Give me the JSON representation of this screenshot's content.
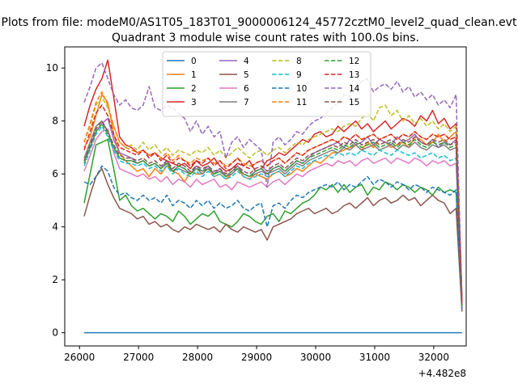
{
  "figure": {
    "suptitle": "Plots from file: modeM0/AS1T05_183T01_9000006124_45772cztM0_level2_quad_clean.evt"
  },
  "chart_data": {
    "type": "line",
    "title": "Quadrant 3 module wise count rates with 100.0s bins.",
    "xlabel": "",
    "ylabel": "",
    "x_offset_label": "+4.482e8",
    "xlim": [
      25750,
      32550
    ],
    "ylim": [
      -0.5,
      10.8
    ],
    "x_ticks": [
      26000,
      27000,
      28000,
      29000,
      30000,
      31000,
      32000
    ],
    "x_tick_labels": [
      "26000",
      "27000",
      "28000",
      "29000",
      "30000",
      "31000",
      "32000"
    ],
    "y_ticks": [
      0,
      2,
      4,
      6,
      8,
      10
    ],
    "y_tick_labels": [
      "0",
      "2",
      "4",
      "6",
      "8",
      "10"
    ],
    "x_start": 26079,
    "x_step": 100,
    "legend": {
      "placement": "upper-center",
      "columns": 4
    },
    "grid": false,
    "series": [
      {
        "name": "0",
        "color": "#1f77b4",
        "dash": "solid",
        "values": [
          0,
          0,
          0,
          0,
          0,
          0,
          0,
          0,
          0,
          0,
          0,
          0,
          0,
          0,
          0,
          0,
          0,
          0,
          0,
          0,
          0,
          0,
          0,
          0,
          0,
          0,
          0,
          0,
          0,
          0,
          0,
          0,
          0,
          0,
          0,
          0,
          0,
          0,
          0,
          0,
          0,
          0,
          0,
          0,
          0,
          0,
          0,
          0,
          0,
          0,
          0,
          0,
          0,
          0,
          0,
          0,
          0,
          0,
          0,
          0,
          0,
          0,
          0,
          0,
          0
        ]
      },
      {
        "name": "1",
        "color": "#ff7f0e",
        "dash": "solid",
        "values": [
          7.0,
          7.4,
          8.2,
          9.0,
          8.7,
          7.5,
          6.8,
          6.5,
          6.3,
          6.1,
          6.2,
          5.9,
          6.2,
          6.0,
          6.3,
          6.1,
          6.0,
          5.7,
          6.1,
          6.0,
          6.0,
          6.2,
          5.9,
          6.0,
          5.8,
          6.0,
          6.2,
          5.9,
          5.8,
          6.0,
          5.9,
          5.8,
          6.0,
          6.1,
          5.9,
          6.0,
          6.2,
          6.1,
          6.3,
          6.5,
          6.4,
          6.6,
          6.8,
          6.8,
          6.9,
          7.0,
          7.1,
          6.9,
          7.2,
          7.0,
          7.3,
          7.2,
          7.0,
          7.1,
          7.2,
          7.0,
          7.4,
          7.3,
          7.1,
          7.2,
          7.5,
          7.2,
          7.4,
          7.6,
          0.9
        ]
      },
      {
        "name": "2",
        "color": "#2ca02c",
        "dash": "solid",
        "values": [
          4.9,
          6.0,
          7.1,
          7.2,
          7.3,
          6.2,
          5.0,
          5.2,
          4.8,
          4.6,
          4.7,
          4.5,
          4.3,
          4.5,
          4.4,
          4.2,
          4.6,
          4.4,
          4.1,
          4.3,
          4.5,
          4.4,
          4.6,
          4.2,
          4.1,
          4.0,
          4.2,
          4.5,
          4.4,
          4.2,
          4.1,
          4.4,
          4.5,
          4.2,
          4.6,
          4.5,
          4.7,
          4.9,
          5.0,
          5.2,
          5.5,
          5.4,
          5.6,
          5.3,
          5.6,
          5.3,
          5.5,
          5.6,
          5.2,
          5.5,
          5.4,
          5.7,
          5.6,
          5.4,
          5.6,
          5.5,
          5.3,
          5.5,
          5.4,
          5.2,
          5.5,
          5.3,
          5.4,
          5.3,
          1.0
        ]
      },
      {
        "name": "3",
        "color": "#d62728",
        "dash": "solid",
        "values": [
          7.8,
          8.6,
          9.2,
          9.6,
          10.3,
          8.9,
          7.4,
          7.1,
          7.0,
          6.8,
          6.9,
          6.7,
          6.8,
          6.6,
          6.5,
          6.4,
          6.3,
          6.4,
          6.2,
          6.5,
          6.3,
          6.4,
          6.6,
          6.3,
          6.1,
          6.2,
          6.4,
          6.3,
          6.5,
          6.1,
          6.2,
          6.5,
          6.6,
          6.8,
          6.7,
          6.9,
          7.1,
          7.3,
          7.2,
          7.5,
          7.6,
          7.4,
          7.5,
          7.8,
          7.6,
          7.8,
          8.0,
          7.7,
          7.9,
          7.6,
          7.8,
          8.0,
          7.7,
          7.9,
          8.1,
          8.0,
          7.8,
          8.2,
          8.0,
          8.4,
          7.9,
          8.1,
          7.7,
          7.9,
          1.3
        ]
      },
      {
        "name": "4",
        "color": "#9467bd",
        "dash": "solid",
        "values": [
          6.5,
          7.0,
          7.6,
          7.9,
          8.1,
          7.3,
          6.8,
          6.7,
          6.6,
          6.4,
          6.5,
          6.3,
          6.4,
          6.2,
          6.5,
          6.1,
          6.3,
          6.2,
          6.0,
          6.3,
          6.1,
          6.3,
          6.0,
          6.2,
          5.9,
          6.1,
          6.3,
          6.0,
          5.9,
          6.1,
          6.2,
          6.0,
          6.2,
          6.3,
          6.1,
          6.3,
          6.5,
          6.4,
          6.6,
          6.8,
          6.9,
          7.0,
          7.1,
          7.2,
          7.0,
          7.3,
          7.1,
          7.2,
          7.4,
          7.1,
          7.3,
          7.2,
          7.1,
          7.4,
          7.2,
          7.3,
          7.5,
          7.2,
          7.1,
          7.3,
          7.0,
          7.2,
          7.1,
          7.3,
          1.0
        ]
      },
      {
        "name": "5",
        "color": "#8c564b",
        "dash": "solid",
        "values": [
          4.4,
          5.2,
          5.9,
          6.2,
          5.6,
          5.1,
          4.7,
          4.6,
          4.5,
          4.3,
          4.4,
          4.1,
          4.2,
          4.0,
          4.1,
          3.9,
          3.8,
          4.0,
          3.9,
          4.1,
          4.0,
          3.9,
          4.0,
          3.8,
          4.1,
          3.9,
          3.8,
          4.0,
          3.9,
          3.8,
          3.9,
          3.5,
          4.0,
          4.1,
          4.2,
          4.3,
          4.5,
          4.6,
          4.7,
          4.5,
          4.6,
          4.7,
          4.5,
          4.6,
          4.8,
          4.9,
          4.7,
          4.9,
          5.1,
          4.8,
          5.0,
          5.1,
          4.9,
          5.0,
          5.2,
          5.0,
          5.1,
          4.8,
          5.0,
          5.2,
          5.0,
          4.9,
          4.5,
          4.7,
          0.8
        ]
      },
      {
        "name": "6",
        "color": "#e377c2",
        "dash": "solid",
        "values": [
          6.1,
          6.7,
          7.3,
          7.6,
          7.7,
          6.8,
          6.2,
          6.1,
          6.0,
          5.9,
          6.0,
          5.8,
          5.9,
          5.7,
          5.9,
          5.6,
          5.8,
          5.7,
          5.5,
          5.8,
          5.6,
          5.7,
          5.8,
          5.5,
          5.6,
          5.4,
          5.7,
          5.6,
          5.5,
          5.6,
          5.7,
          5.5,
          5.7,
          5.8,
          5.6,
          5.8,
          6.0,
          5.9,
          6.1,
          6.2,
          6.3,
          6.4,
          6.3,
          6.5,
          6.4,
          6.5,
          6.3,
          6.5,
          6.6,
          6.4,
          6.5,
          6.6,
          6.4,
          6.6,
          6.5,
          6.4,
          6.6,
          6.5,
          6.3,
          6.5,
          6.4,
          6.5,
          6.3,
          6.4,
          0.9
        ]
      },
      {
        "name": "7",
        "color": "#7f7f7f",
        "dash": "solid",
        "values": [
          6.6,
          7.2,
          7.8,
          8.0,
          7.6,
          7.0,
          6.6,
          6.5,
          6.5,
          6.4,
          6.5,
          6.3,
          6.4,
          6.2,
          6.4,
          6.1,
          6.2,
          6.1,
          6.0,
          6.2,
          6.0,
          6.2,
          6.0,
          6.1,
          5.9,
          6.0,
          6.2,
          6.0,
          5.9,
          6.0,
          6.1,
          6.0,
          6.1,
          6.2,
          6.0,
          6.2,
          6.4,
          6.3,
          6.5,
          6.6,
          6.7,
          6.8,
          6.9,
          6.8,
          7.0,
          6.9,
          7.1,
          6.9,
          7.0,
          7.1,
          6.9,
          7.0,
          7.1,
          6.9,
          7.1,
          7.0,
          7.2,
          7.0,
          6.9,
          7.1,
          7.0,
          7.1,
          6.9,
          7.0,
          1.0
        ]
      },
      {
        "name": "8",
        "color": "#bcbd22",
        "dash": "dashed",
        "values": [
          7.2,
          7.8,
          8.6,
          8.9,
          8.5,
          7.8,
          7.2,
          7.0,
          7.1,
          6.9,
          7.2,
          6.9,
          7.1,
          6.8,
          7.0,
          6.7,
          6.9,
          6.8,
          6.7,
          6.9,
          6.8,
          7.0,
          6.7,
          6.9,
          6.6,
          6.8,
          7.0,
          6.8,
          6.6,
          6.8,
          6.9,
          6.7,
          6.9,
          7.0,
          6.8,
          7.0,
          7.2,
          7.1,
          7.3,
          7.4,
          7.5,
          7.6,
          7.7,
          7.6,
          7.8,
          7.9,
          7.8,
          8.1,
          8.3,
          8.0,
          8.5,
          8.6,
          8.2,
          8.4,
          8.0,
          8.2,
          7.9,
          8.1,
          7.8,
          8.0,
          7.7,
          7.9,
          7.6,
          7.8,
          1.2
        ]
      },
      {
        "name": "9",
        "color": "#17becf",
        "dash": "dashed",
        "values": [
          6.3,
          6.9,
          7.5,
          7.8,
          7.4,
          6.9,
          6.5,
          6.4,
          6.4,
          6.3,
          6.4,
          6.2,
          6.3,
          6.1,
          6.3,
          6.0,
          6.2,
          6.0,
          5.9,
          6.1,
          5.9,
          6.1,
          5.9,
          6.0,
          5.8,
          5.9,
          6.1,
          5.9,
          5.8,
          5.9,
          6.0,
          5.9,
          6.0,
          6.1,
          5.9,
          6.1,
          6.3,
          6.2,
          6.4,
          6.5,
          6.6,
          6.7,
          6.6,
          6.8,
          6.7,
          6.8,
          6.7,
          6.9,
          6.8,
          6.7,
          6.9,
          6.8,
          6.7,
          6.9,
          6.8,
          6.7,
          6.8,
          6.6,
          6.7,
          6.8,
          6.6,
          6.7,
          6.5,
          6.6,
          1.0
        ]
      },
      {
        "name": "10",
        "color": "#1f77b4",
        "dash": "dashed",
        "values": [
          5.7,
          5.6,
          5.9,
          6.3,
          6.1,
          5.5,
          5.2,
          5.3,
          5.1,
          5.0,
          5.2,
          5.0,
          5.1,
          4.9,
          5.2,
          4.8,
          5.0,
          4.9,
          4.7,
          5.0,
          4.8,
          5.0,
          4.7,
          4.9,
          4.7,
          4.8,
          5.0,
          4.7,
          4.6,
          4.8,
          4.9,
          4.0,
          4.8,
          4.9,
          4.7,
          5.0,
          5.2,
          5.1,
          5.3,
          5.4,
          5.5,
          5.6,
          5.5,
          5.7,
          5.4,
          5.6,
          5.5,
          5.7,
          5.9,
          5.6,
          5.8,
          5.7,
          5.5,
          5.7,
          5.6,
          5.4,
          5.6,
          5.5,
          5.3,
          5.5,
          5.4,
          5.3,
          5.2,
          5.4,
          0.9
        ]
      },
      {
        "name": "11",
        "color": "#ff7f0e",
        "dash": "dashed",
        "values": [
          7.2,
          7.9,
          8.7,
          9.1,
          8.6,
          7.8,
          7.2,
          7.0,
          6.9,
          6.8,
          6.9,
          6.7,
          6.8,
          6.6,
          6.8,
          6.5,
          6.7,
          6.5,
          6.4,
          6.6,
          6.5,
          6.6,
          6.4,
          6.5,
          6.3,
          6.4,
          6.6,
          6.4,
          6.3,
          6.4,
          6.5,
          6.3,
          6.5,
          6.6,
          6.4,
          6.6,
          6.8,
          6.7,
          6.9,
          7.0,
          7.1,
          7.2,
          7.3,
          7.2,
          7.4,
          7.3,
          7.5,
          7.3,
          7.4,
          7.5,
          7.3,
          7.4,
          7.5,
          7.3,
          7.5,
          7.4,
          7.6,
          7.4,
          7.3,
          7.5,
          7.4,
          7.5,
          7.3,
          7.4,
          1.1
        ]
      },
      {
        "name": "12",
        "color": "#2ca02c",
        "dash": "dashed",
        "values": [
          6.4,
          7.0,
          7.6,
          7.9,
          7.5,
          7.0,
          6.6,
          6.5,
          6.5,
          6.4,
          6.5,
          6.3,
          6.4,
          6.2,
          6.4,
          6.1,
          6.3,
          6.2,
          6.0,
          6.2,
          6.1,
          6.2,
          6.0,
          6.1,
          5.9,
          6.1,
          6.2,
          6.0,
          5.9,
          6.1,
          6.2,
          6.0,
          6.2,
          6.3,
          6.1,
          6.3,
          6.5,
          6.4,
          6.6,
          6.7,
          6.8,
          6.9,
          7.0,
          6.9,
          7.1,
          7.0,
          7.2,
          7.0,
          7.1,
          7.2,
          7.0,
          7.1,
          7.2,
          7.0,
          7.2,
          7.1,
          7.3,
          7.1,
          7.0,
          7.2,
          7.1,
          7.2,
          7.0,
          7.1,
          1.0
        ]
      },
      {
        "name": "13",
        "color": "#d62728",
        "dash": "dashed",
        "values": [
          6.9,
          7.6,
          8.3,
          8.6,
          8.2,
          7.5,
          7.0,
          6.9,
          6.8,
          6.7,
          6.9,
          6.6,
          6.8,
          6.5,
          6.7,
          6.4,
          6.6,
          6.5,
          6.3,
          6.5,
          6.4,
          6.6,
          6.3,
          6.5,
          6.2,
          6.4,
          6.6,
          6.3,
          6.2,
          6.4,
          6.5,
          6.3,
          6.5,
          6.6,
          6.4,
          6.6,
          6.8,
          6.7,
          6.9,
          7.0,
          7.1,
          7.2,
          7.3,
          7.2,
          7.4,
          7.3,
          7.5,
          7.3,
          7.4,
          7.5,
          7.3,
          7.4,
          7.5,
          7.3,
          7.5,
          7.4,
          7.6,
          7.4,
          7.3,
          7.5,
          7.4,
          7.5,
          7.3,
          7.4,
          1.2
        ]
      },
      {
        "name": "14",
        "color": "#9467bd",
        "dash": "dashed",
        "values": [
          8.7,
          9.3,
          10.0,
          10.2,
          9.6,
          9.0,
          8.6,
          8.8,
          8.5,
          8.4,
          8.6,
          9.3,
          8.5,
          8.4,
          8.6,
          8.5,
          8.3,
          8.1,
          7.6,
          8.0,
          7.5,
          7.8,
          7.4,
          7.6,
          6.6,
          7.2,
          7.4,
          7.0,
          7.3,
          7.1,
          6.9,
          5.5,
          7.2,
          7.4,
          7.1,
          7.3,
          7.6,
          7.5,
          7.8,
          8.0,
          8.1,
          8.3,
          8.5,
          8.7,
          9.0,
          8.9,
          9.2,
          9.5,
          9.6,
          9.1,
          9.3,
          9.4,
          9.2,
          9.5,
          9.1,
          9.3,
          8.9,
          9.1,
          8.8,
          9.0,
          8.6,
          8.8,
          8.5,
          9.0,
          1.3
        ]
      },
      {
        "name": "15",
        "color": "#8c564b",
        "dash": "dashed",
        "values": [
          6.5,
          7.1,
          7.7,
          8.0,
          7.6,
          7.1,
          6.7,
          6.6,
          6.6,
          6.5,
          6.6,
          6.4,
          6.5,
          6.3,
          6.5,
          6.2,
          6.4,
          6.3,
          6.1,
          6.3,
          6.2,
          6.3,
          6.1,
          6.2,
          6.0,
          6.2,
          6.3,
          6.1,
          6.0,
          6.2,
          6.3,
          6.1,
          6.3,
          6.4,
          6.2,
          6.4,
          6.6,
          6.5,
          6.7,
          6.8,
          6.9,
          7.0,
          7.1,
          7.0,
          7.2,
          7.1,
          7.3,
          7.1,
          7.2,
          7.3,
          7.1,
          7.2,
          7.3,
          7.1,
          7.3,
          7.2,
          7.4,
          7.2,
          7.1,
          7.3,
          7.2,
          7.3,
          7.1,
          7.2,
          1.0
        ]
      }
    ]
  }
}
